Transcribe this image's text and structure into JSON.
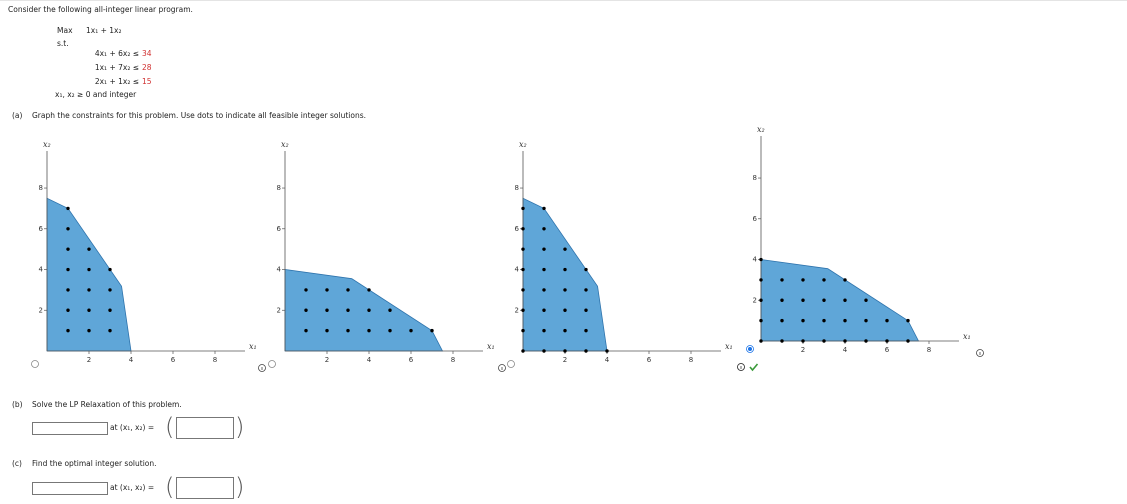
{
  "intro": "Consider the following all-integer linear program.",
  "program": {
    "objective_label": "Max",
    "objective": "1x₁ + 1x₂",
    "st_label": "s.t.",
    "constraints": [
      {
        "lhs": "4x₁ + 6x₂ ≤",
        "rhs": 34
      },
      {
        "lhs": "1x₁ + 7x₂ ≤",
        "rhs": 28
      },
      {
        "lhs": "2x₁ + 1x₂ ≤",
        "rhs": 15
      }
    ],
    "nonneg": "x₁, x₂ ≥ 0 and integer"
  },
  "part_a": {
    "label": "(a)",
    "prompt": "Graph the constraints for this problem. Use dots to indicate all feasible integer solutions.",
    "options": [
      {
        "x_label": "x₁",
        "y_label": "x₂",
        "xticks": [
          2,
          4,
          6,
          8
        ],
        "yticks": [
          2,
          4,
          6,
          8
        ],
        "selected": false,
        "region": [
          [
            0,
            0
          ],
          [
            0,
            7.5
          ],
          [
            1,
            7
          ],
          [
            3.55,
            3.18
          ],
          [
            4,
            0
          ]
        ],
        "dots": [
          [
            1,
            1
          ],
          [
            1,
            2
          ],
          [
            1,
            3
          ],
          [
            1,
            4
          ],
          [
            1,
            5
          ],
          [
            1,
            6
          ],
          [
            1,
            7
          ],
          [
            2,
            1
          ],
          [
            2,
            2
          ],
          [
            2,
            3
          ],
          [
            2,
            4
          ],
          [
            2,
            5
          ],
          [
            3,
            1
          ],
          [
            3,
            2
          ],
          [
            3,
            3
          ],
          [
            3,
            4
          ]
        ]
      },
      {
        "x_label": "x₁",
        "y_label": "x₂",
        "xticks": [
          2,
          4,
          6,
          8
        ],
        "yticks": [
          2,
          4,
          6,
          8
        ],
        "selected": false,
        "region": [
          [
            0,
            0
          ],
          [
            0,
            4
          ],
          [
            3.18,
            3.55
          ],
          [
            7,
            1
          ],
          [
            7.5,
            0
          ]
        ],
        "dots": [
          [
            1,
            1
          ],
          [
            2,
            1
          ],
          [
            3,
            1
          ],
          [
            4,
            1
          ],
          [
            5,
            1
          ],
          [
            6,
            1
          ],
          [
            7,
            1
          ],
          [
            1,
            2
          ],
          [
            2,
            2
          ],
          [
            3,
            2
          ],
          [
            4,
            2
          ],
          [
            5,
            2
          ],
          [
            1,
            3
          ],
          [
            2,
            3
          ],
          [
            3,
            3
          ],
          [
            4,
            3
          ]
        ]
      },
      {
        "x_label": "x₁",
        "y_label": "x₂",
        "xticks": [
          2,
          4,
          6,
          8
        ],
        "yticks": [
          2,
          4,
          6,
          8
        ],
        "selected": false,
        "region": [
          [
            0,
            0
          ],
          [
            0,
            7.5
          ],
          [
            1,
            7
          ],
          [
            3.55,
            3.18
          ],
          [
            4,
            0
          ]
        ],
        "dots": [
          [
            0,
            0
          ],
          [
            0,
            1
          ],
          [
            0,
            2
          ],
          [
            0,
            3
          ],
          [
            0,
            4
          ],
          [
            0,
            5
          ],
          [
            0,
            6
          ],
          [
            0,
            7
          ],
          [
            1,
            0
          ],
          [
            1,
            1
          ],
          [
            1,
            2
          ],
          [
            1,
            3
          ],
          [
            1,
            4
          ],
          [
            1,
            5
          ],
          [
            1,
            6
          ],
          [
            1,
            7
          ],
          [
            2,
            0
          ],
          [
            2,
            1
          ],
          [
            2,
            2
          ],
          [
            2,
            3
          ],
          [
            2,
            4
          ],
          [
            2,
            5
          ],
          [
            3,
            0
          ],
          [
            3,
            1
          ],
          [
            3,
            2
          ],
          [
            3,
            3
          ],
          [
            3,
            4
          ],
          [
            4,
            0
          ]
        ]
      },
      {
        "x_label": "x₁",
        "y_label": "x₂",
        "xticks": [
          2,
          4,
          6,
          8
        ],
        "yticks": [
          2,
          4,
          6,
          8
        ],
        "selected": true,
        "region": [
          [
            0,
            0
          ],
          [
            0,
            4
          ],
          [
            3.18,
            3.55
          ],
          [
            7,
            1
          ],
          [
            7.5,
            0
          ]
        ],
        "dots": [
          [
            0,
            0
          ],
          [
            1,
            0
          ],
          [
            2,
            0
          ],
          [
            3,
            0
          ],
          [
            4,
            0
          ],
          [
            5,
            0
          ],
          [
            6,
            0
          ],
          [
            7,
            0
          ],
          [
            0,
            1
          ],
          [
            1,
            1
          ],
          [
            2,
            1
          ],
          [
            3,
            1
          ],
          [
            4,
            1
          ],
          [
            5,
            1
          ],
          [
            6,
            1
          ],
          [
            7,
            1
          ],
          [
            0,
            2
          ],
          [
            1,
            2
          ],
          [
            2,
            2
          ],
          [
            3,
            2
          ],
          [
            4,
            2
          ],
          [
            5,
            2
          ],
          [
            0,
            3
          ],
          [
            1,
            3
          ],
          [
            2,
            3
          ],
          [
            3,
            3
          ],
          [
            4,
            3
          ],
          [
            0,
            4
          ]
        ]
      }
    ]
  },
  "part_b": {
    "label": "(b)",
    "prompt": "Solve the LP Relaxation of this problem.",
    "at_label": "at (x₁, x₂) ="
  },
  "part_c": {
    "label": "(c)",
    "prompt": "Find the optimal integer solution.",
    "at_label": "at (x₁, x₂) ="
  }
}
